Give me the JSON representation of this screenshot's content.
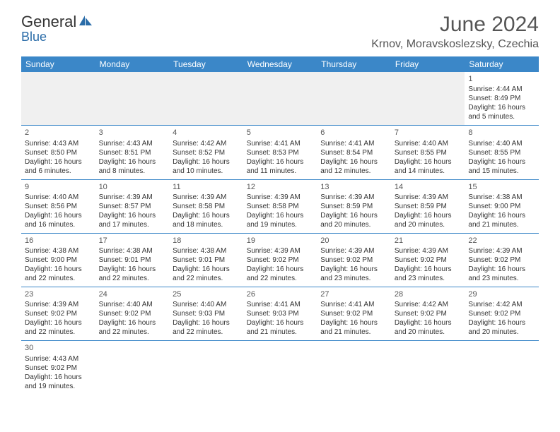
{
  "logo": {
    "part1": "General",
    "part2": "Blue"
  },
  "title": "June 2024",
  "location": "Krnov, Moravskoslezsky, Czechia",
  "dayHeaders": [
    "Sunday",
    "Monday",
    "Tuesday",
    "Wednesday",
    "Thursday",
    "Friday",
    "Saturday"
  ],
  "colors": {
    "headerBg": "#3b87c8",
    "headerText": "#ffffff",
    "borderColor": "#3b87c8",
    "emptyWeekBg": "#f0f0f0",
    "textColor": "#333333",
    "titleColor": "#555555"
  },
  "weeks": [
    [
      null,
      null,
      null,
      null,
      null,
      null,
      {
        "n": "1",
        "sr": "Sunrise: 4:44 AM",
        "ss": "Sunset: 8:49 PM",
        "d1": "Daylight: 16 hours",
        "d2": "and 5 minutes."
      }
    ],
    [
      {
        "n": "2",
        "sr": "Sunrise: 4:43 AM",
        "ss": "Sunset: 8:50 PM",
        "d1": "Daylight: 16 hours",
        "d2": "and 6 minutes."
      },
      {
        "n": "3",
        "sr": "Sunrise: 4:43 AM",
        "ss": "Sunset: 8:51 PM",
        "d1": "Daylight: 16 hours",
        "d2": "and 8 minutes."
      },
      {
        "n": "4",
        "sr": "Sunrise: 4:42 AM",
        "ss": "Sunset: 8:52 PM",
        "d1": "Daylight: 16 hours",
        "d2": "and 10 minutes."
      },
      {
        "n": "5",
        "sr": "Sunrise: 4:41 AM",
        "ss": "Sunset: 8:53 PM",
        "d1": "Daylight: 16 hours",
        "d2": "and 11 minutes."
      },
      {
        "n": "6",
        "sr": "Sunrise: 4:41 AM",
        "ss": "Sunset: 8:54 PM",
        "d1": "Daylight: 16 hours",
        "d2": "and 12 minutes."
      },
      {
        "n": "7",
        "sr": "Sunrise: 4:40 AM",
        "ss": "Sunset: 8:55 PM",
        "d1": "Daylight: 16 hours",
        "d2": "and 14 minutes."
      },
      {
        "n": "8",
        "sr": "Sunrise: 4:40 AM",
        "ss": "Sunset: 8:55 PM",
        "d1": "Daylight: 16 hours",
        "d2": "and 15 minutes."
      }
    ],
    [
      {
        "n": "9",
        "sr": "Sunrise: 4:40 AM",
        "ss": "Sunset: 8:56 PM",
        "d1": "Daylight: 16 hours",
        "d2": "and 16 minutes."
      },
      {
        "n": "10",
        "sr": "Sunrise: 4:39 AM",
        "ss": "Sunset: 8:57 PM",
        "d1": "Daylight: 16 hours",
        "d2": "and 17 minutes."
      },
      {
        "n": "11",
        "sr": "Sunrise: 4:39 AM",
        "ss": "Sunset: 8:58 PM",
        "d1": "Daylight: 16 hours",
        "d2": "and 18 minutes."
      },
      {
        "n": "12",
        "sr": "Sunrise: 4:39 AM",
        "ss": "Sunset: 8:58 PM",
        "d1": "Daylight: 16 hours",
        "d2": "and 19 minutes."
      },
      {
        "n": "13",
        "sr": "Sunrise: 4:39 AM",
        "ss": "Sunset: 8:59 PM",
        "d1": "Daylight: 16 hours",
        "d2": "and 20 minutes."
      },
      {
        "n": "14",
        "sr": "Sunrise: 4:39 AM",
        "ss": "Sunset: 8:59 PM",
        "d1": "Daylight: 16 hours",
        "d2": "and 20 minutes."
      },
      {
        "n": "15",
        "sr": "Sunrise: 4:38 AM",
        "ss": "Sunset: 9:00 PM",
        "d1": "Daylight: 16 hours",
        "d2": "and 21 minutes."
      }
    ],
    [
      {
        "n": "16",
        "sr": "Sunrise: 4:38 AM",
        "ss": "Sunset: 9:00 PM",
        "d1": "Daylight: 16 hours",
        "d2": "and 22 minutes."
      },
      {
        "n": "17",
        "sr": "Sunrise: 4:38 AM",
        "ss": "Sunset: 9:01 PM",
        "d1": "Daylight: 16 hours",
        "d2": "and 22 minutes."
      },
      {
        "n": "18",
        "sr": "Sunrise: 4:38 AM",
        "ss": "Sunset: 9:01 PM",
        "d1": "Daylight: 16 hours",
        "d2": "and 22 minutes."
      },
      {
        "n": "19",
        "sr": "Sunrise: 4:39 AM",
        "ss": "Sunset: 9:02 PM",
        "d1": "Daylight: 16 hours",
        "d2": "and 22 minutes."
      },
      {
        "n": "20",
        "sr": "Sunrise: 4:39 AM",
        "ss": "Sunset: 9:02 PM",
        "d1": "Daylight: 16 hours",
        "d2": "and 23 minutes."
      },
      {
        "n": "21",
        "sr": "Sunrise: 4:39 AM",
        "ss": "Sunset: 9:02 PM",
        "d1": "Daylight: 16 hours",
        "d2": "and 23 minutes."
      },
      {
        "n": "22",
        "sr": "Sunrise: 4:39 AM",
        "ss": "Sunset: 9:02 PM",
        "d1": "Daylight: 16 hours",
        "d2": "and 23 minutes."
      }
    ],
    [
      {
        "n": "23",
        "sr": "Sunrise: 4:39 AM",
        "ss": "Sunset: 9:02 PM",
        "d1": "Daylight: 16 hours",
        "d2": "and 22 minutes."
      },
      {
        "n": "24",
        "sr": "Sunrise: 4:40 AM",
        "ss": "Sunset: 9:02 PM",
        "d1": "Daylight: 16 hours",
        "d2": "and 22 minutes."
      },
      {
        "n": "25",
        "sr": "Sunrise: 4:40 AM",
        "ss": "Sunset: 9:03 PM",
        "d1": "Daylight: 16 hours",
        "d2": "and 22 minutes."
      },
      {
        "n": "26",
        "sr": "Sunrise: 4:41 AM",
        "ss": "Sunset: 9:03 PM",
        "d1": "Daylight: 16 hours",
        "d2": "and 21 minutes."
      },
      {
        "n": "27",
        "sr": "Sunrise: 4:41 AM",
        "ss": "Sunset: 9:02 PM",
        "d1": "Daylight: 16 hours",
        "d2": "and 21 minutes."
      },
      {
        "n": "28",
        "sr": "Sunrise: 4:42 AM",
        "ss": "Sunset: 9:02 PM",
        "d1": "Daylight: 16 hours",
        "d2": "and 20 minutes."
      },
      {
        "n": "29",
        "sr": "Sunrise: 4:42 AM",
        "ss": "Sunset: 9:02 PM",
        "d1": "Daylight: 16 hours",
        "d2": "and 20 minutes."
      }
    ],
    [
      {
        "n": "30",
        "sr": "Sunrise: 4:43 AM",
        "ss": "Sunset: 9:02 PM",
        "d1": "Daylight: 16 hours",
        "d2": "and 19 minutes."
      },
      null,
      null,
      null,
      null,
      null,
      null
    ]
  ]
}
